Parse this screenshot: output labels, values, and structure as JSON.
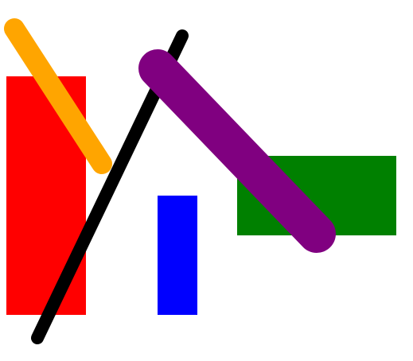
{
  "colors": {
    "background": "#ffffff",
    "red": "#ff0000",
    "blue": "#0000ff",
    "green": "#008000",
    "orange": "#ffa500",
    "black": "#000000",
    "purple": "#800080"
  },
  "shapes": {
    "rectangles": [
      {
        "name": "red-rectangle",
        "color": "red"
      },
      {
        "name": "blue-rectangle",
        "color": "blue"
      },
      {
        "name": "green-rectangle",
        "color": "green"
      }
    ],
    "strokes": [
      {
        "name": "orange-stroke",
        "color": "orange"
      },
      {
        "name": "black-stroke",
        "color": "black"
      },
      {
        "name": "purple-stroke",
        "color": "purple"
      }
    ]
  }
}
